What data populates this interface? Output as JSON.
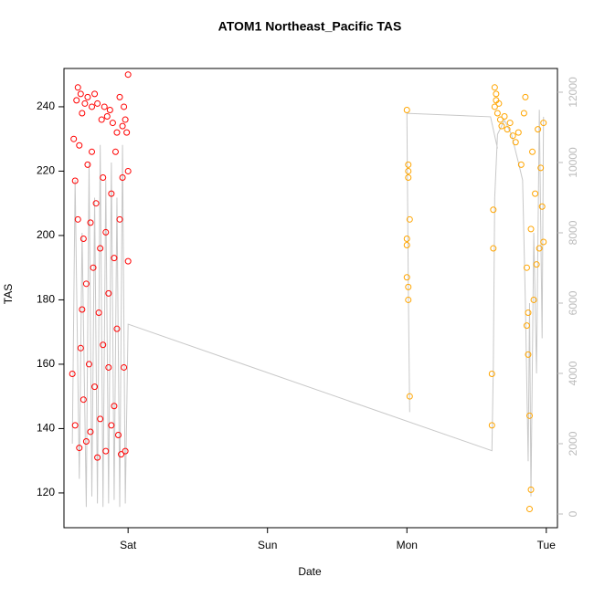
{
  "chart_data": {
    "type": "scatter",
    "title": "ATOM1 Northeast_Pacific TAS",
    "x_label": "Date",
    "y_label": "TAS",
    "xlim": [
      -0.46,
      3.08
    ],
    "xticks": [
      {
        "value": 0,
        "label": "Sat"
      },
      {
        "value": 1,
        "label": "Sun"
      },
      {
        "value": 2,
        "label": "Mon"
      },
      {
        "value": 3,
        "label": "Tue"
      }
    ],
    "ylim": [
      109.2,
      251.9
    ],
    "yticks": [
      120,
      140,
      160,
      180,
      200,
      220,
      240
    ],
    "y2lim": [
      -390,
      12675
    ],
    "y2ticks": [
      0,
      2000,
      4000,
      6000,
      8000,
      10000,
      12000
    ],
    "series": [
      {
        "type": "line",
        "axis": "y2",
        "color": "#c8c8c8",
        "x": [
          -0.4,
          -0.38,
          -0.35,
          -0.33,
          -0.3,
          -0.28,
          -0.26,
          -0.24,
          -0.22,
          -0.2,
          -0.18,
          -0.16,
          -0.14,
          -0.12,
          -0.1,
          -0.08,
          -0.06,
          -0.04,
          -0.02,
          0.0,
          2.61,
          2.62,
          2.63,
          2.65,
          2.7,
          2.75,
          2.8,
          2.83,
          2.85,
          2.87,
          2.88,
          2.89,
          2.91,
          2.93,
          2.95,
          2.97,
          2.98,
          null,
          2.02,
          2.01,
          2.0,
          2.6,
          2.65
        ],
        "values": [
          2000,
          9500,
          1000,
          8000,
          200,
          10000,
          500,
          9000,
          300,
          10500,
          200,
          9500,
          300,
          10000,
          400,
          9000,
          200,
          10500,
          300,
          5400,
          1800,
          4200,
          9000,
          10800,
          11200,
          10800,
          10000,
          9500,
          6000,
          1500,
          6000,
          500,
          8000,
          4000,
          11500,
          5000,
          11300,
          null,
          2900,
          6500,
          11400,
          11300,
          10400
        ]
      },
      {
        "type": "scatter",
        "color": "#ff0000",
        "x": [
          -0.4,
          -0.39,
          -0.38,
          -0.38,
          -0.37,
          -0.36,
          -0.36,
          -0.35,
          -0.35,
          -0.34,
          -0.34,
          -0.33,
          -0.33,
          -0.32,
          -0.32,
          -0.31,
          -0.3,
          -0.3,
          -0.29,
          -0.29,
          -0.28,
          -0.27,
          -0.27,
          -0.26,
          -0.26,
          -0.25,
          -0.24,
          -0.24,
          -0.23,
          -0.22,
          -0.22,
          -0.21,
          -0.2,
          -0.2,
          -0.19,
          -0.18,
          -0.18,
          -0.17,
          -0.16,
          -0.16,
          -0.15,
          -0.14,
          -0.14,
          -0.13,
          -0.12,
          -0.12,
          -0.11,
          -0.1,
          -0.1,
          -0.09,
          -0.08,
          -0.08,
          -0.07,
          -0.06,
          -0.06,
          -0.05,
          -0.04,
          -0.04,
          -0.03,
          -0.03,
          -0.02,
          -0.02,
          -0.01,
          0.0,
          0.0,
          0.0
        ],
        "values": [
          157,
          230,
          141,
          217,
          242,
          246,
          205,
          134,
          228,
          244,
          165,
          177,
          238,
          199,
          149,
          241,
          185,
          136,
          222,
          243,
          160,
          204,
          139,
          226,
          240,
          190,
          153,
          244,
          210,
          131,
          241,
          176,
          196,
          143,
          236,
          218,
          166,
          240,
          133,
          201,
          237,
          182,
          159,
          239,
          213,
          141,
          235,
          193,
          147,
          226,
          232,
          171,
          138,
          243,
          205,
          132,
          234,
          218,
          159,
          240,
          236,
          133,
          232,
          192,
          220,
          250
        ]
      },
      {
        "type": "scatter",
        "color": "#ffa500",
        "x": [
          2.0,
          2.01,
          2.01,
          2.01,
          2.02,
          2.0,
          2.0,
          2.0,
          2.01,
          2.01,
          2.02,
          2.61,
          2.61,
          2.62,
          2.62,
          2.63,
          2.63,
          2.64,
          2.64,
          2.65,
          2.66,
          2.67,
          2.68,
          2.7,
          2.72,
          2.74,
          2.76,
          2.78,
          2.8,
          2.82,
          2.84,
          2.85,
          2.86,
          2.86,
          2.87,
          2.87,
          2.88,
          2.88,
          2.89,
          2.89,
          2.9,
          2.91,
          2.92,
          2.93,
          2.94,
          2.95,
          2.96,
          2.97,
          2.98,
          2.98
        ],
        "values": [
          239,
          222,
          220,
          218,
          205,
          199,
          197,
          187,
          184,
          180,
          150,
          141,
          157,
          196,
          208,
          240,
          246,
          242,
          244,
          238,
          241,
          236,
          234,
          237,
          233,
          235,
          231,
          229,
          232,
          222,
          238,
          243,
          190,
          172,
          176,
          163,
          144,
          115,
          121,
          202,
          226,
          180,
          213,
          191,
          233,
          196,
          221,
          209,
          235,
          198
        ]
      }
    ]
  }
}
